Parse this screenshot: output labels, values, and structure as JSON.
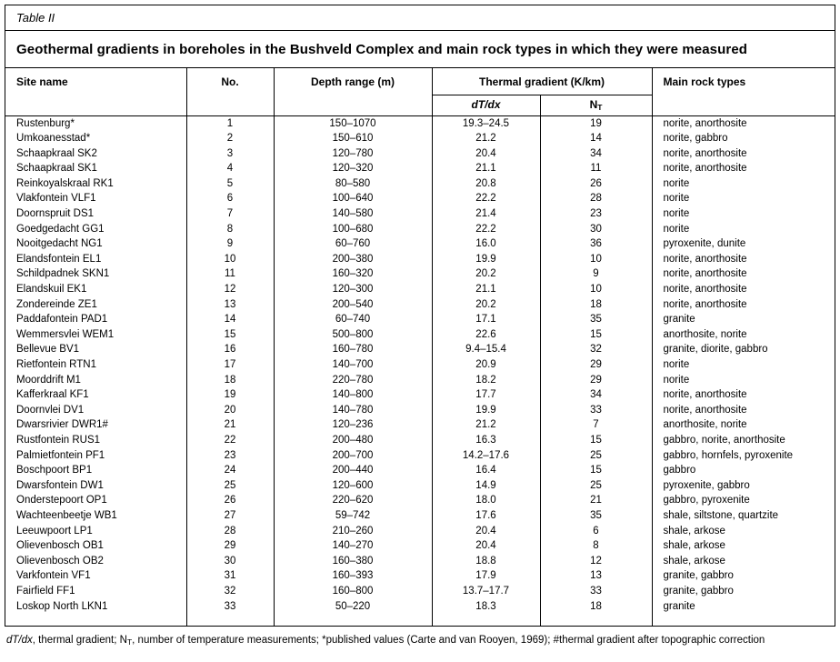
{
  "colors": {
    "background": "#ffffff",
    "text": "#000000",
    "border": "#000000"
  },
  "document": {
    "table_label": "Table II",
    "title": "Geothermal gradients in boreholes in the Bushveld Complex and main rock types in which they were measured"
  },
  "table": {
    "headers": {
      "site_name": "Site name",
      "no": "No.",
      "depth_range": "Depth range (m)",
      "thermal_gradient": "Thermal gradient (K/km)",
      "main_rock_types": "Main rock types"
    },
    "subheaders": {
      "dtdx": [
        {
          "text": "dT/dx",
          "style": "italic"
        }
      ],
      "nt": [
        {
          "text": "N",
          "style": "normal"
        },
        {
          "text": "T",
          "style": "sub"
        }
      ]
    },
    "rows": [
      [
        "Rustenburg*",
        "1",
        "150–1070",
        "19.3–24.5",
        "19",
        "norite, anorthosite"
      ],
      [
        "Umkoanesstad*",
        "2",
        "150–610",
        "21.2",
        "14",
        "norite, gabbro"
      ],
      [
        "Schaapkraal SK2",
        "3",
        "120–780",
        "20.4",
        "34",
        "norite, anorthosite"
      ],
      [
        "Schaapkraal SK1",
        "4",
        "120–320",
        "21.1",
        "11",
        "norite, anorthosite"
      ],
      [
        "Reinkoyalskraal RK1",
        "5",
        "80–580",
        "20.8",
        "26",
        "norite"
      ],
      [
        "Vlakfontein VLF1",
        "6",
        "100–640",
        "22.2",
        "28",
        "norite"
      ],
      [
        "Doornspruit DS1",
        "7",
        "140–580",
        "21.4",
        "23",
        "norite"
      ],
      [
        "Goedgedacht GG1",
        "8",
        "100–680",
        "22.2",
        "30",
        "norite"
      ],
      [
        "Nooitgedacht NG1",
        "9",
        "60–760",
        "16.0",
        "36",
        "pyroxenite, dunite"
      ],
      [
        "Elandsfontein EL1",
        "10",
        "200–380",
        "19.9",
        "10",
        "norite, anorthosite"
      ],
      [
        "Schildpadnek SKN1",
        "11",
        "160–320",
        "20.2",
        "9",
        "norite, anorthosite"
      ],
      [
        "Elandskuil EK1",
        "12",
        "120–300",
        "21.1",
        "10",
        "norite, anorthosite"
      ],
      [
        "Zondereinde ZE1",
        "13",
        "200–540",
        "20.2",
        "18",
        "norite, anorthosite"
      ],
      [
        "Paddafontein PAD1",
        "14",
        "60–740",
        "17.1",
        "35",
        "granite"
      ],
      [
        "Wemmersvlei WEM1",
        "15",
        "500–800",
        "22.6",
        "15",
        "anorthosite, norite"
      ],
      [
        "Bellevue BV1",
        "16",
        "160–780",
        "9.4–15.4",
        "32",
        "granite, diorite, gabbro"
      ],
      [
        "Rietfontein RTN1",
        "17",
        "140–700",
        "20.9",
        "29",
        "norite"
      ],
      [
        "Moorddrift M1",
        "18",
        "220–780",
        "18.2",
        "29",
        "norite"
      ],
      [
        "Kafferkraal KF1",
        "19",
        "140–800",
        "17.7",
        "34",
        "norite, anorthosite"
      ],
      [
        "Doornvlei DV1",
        "20",
        "140–780",
        "19.9",
        "33",
        "norite, anorthosite"
      ],
      [
        "Dwarsrivier DWR1#",
        "21",
        "120–236",
        "21.2",
        "7",
        "anorthosite, norite"
      ],
      [
        "Rustfontein RUS1",
        "22",
        "200–480",
        "16.3",
        "15",
        "gabbro, norite, anorthosite"
      ],
      [
        "Palmietfontein PF1",
        "23",
        "200–700",
        "14.2–17.6",
        "25",
        "gabbro, hornfels, pyroxenite"
      ],
      [
        "Boschpoort BP1",
        "24",
        "200–440",
        "16.4",
        "15",
        "gabbro"
      ],
      [
        "Dwarsfontein DW1",
        "25",
        "120–600",
        "14.9",
        "25",
        "pyroxenite, gabbro"
      ],
      [
        "Onderstepoort OP1",
        "26",
        "220–620",
        "18.0",
        "21",
        "gabbro, pyroxenite"
      ],
      [
        "Wachteenbeetje WB1",
        "27",
        "59–742",
        "17.6",
        "35",
        "shale, siltstone, quartzite"
      ],
      [
        "Leeuwpoort LP1",
        "28",
        "210–260",
        "20.4",
        "6",
        "shale, arkose"
      ],
      [
        "Olievenbosch OB1",
        "29",
        "140–270",
        "20.4",
        "8",
        "shale, arkose"
      ],
      [
        "Olievenbosch OB2",
        "30",
        "160–380",
        "18.8",
        "12",
        "shale, arkose"
      ],
      [
        "Varkfontein VF1",
        "31",
        "160–393",
        "17.9",
        "13",
        "granite, gabbro"
      ],
      [
        "Fairfield FF1",
        "32",
        "160–800",
        "13.7–17.7",
        "33",
        "granite, gabbro"
      ],
      [
        "Loskop North LKN1",
        "33",
        "50–220",
        "18.3",
        "18",
        "granite"
      ]
    ]
  },
  "footnote": {
    "segments": [
      {
        "text": "dT/dx",
        "style": "italic"
      },
      {
        "text": ", thermal gradient; N",
        "style": "normal"
      },
      {
        "text": "T",
        "style": "sub"
      },
      {
        "text": ", number of temperature measurements; *published values (Carte and van Rooyen, 1969); #thermal gradient after topographic correction",
        "style": "normal"
      }
    ]
  }
}
